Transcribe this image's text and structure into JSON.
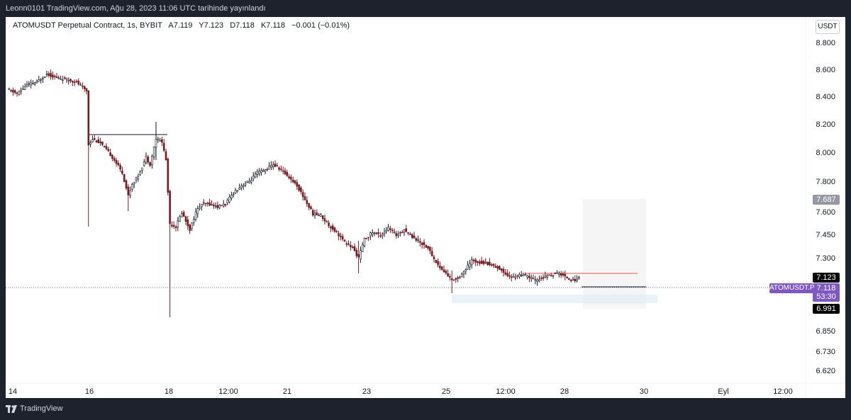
{
  "header": {
    "publish_line": "Leonn0101 TradingView.com, Ağu 28, 2023 11:06 UTC tarihinde yayınlandı"
  },
  "legend": {
    "symbol_text": "ATOMUSDT Perpetual Contract, 1s, BYBIT",
    "ohlc": [
      "A7.119",
      "Y7.123",
      "D7.118",
      "K7.118"
    ],
    "change": "−0.001 (−0.01%)"
  },
  "currency_button": "USDT",
  "price_scale": {
    "ticks": [
      "8.800",
      "8.600",
      "8.400",
      "8.200",
      "8.000",
      "7.800",
      "7.600",
      "7.450",
      "7.300",
      "6.850",
      "6.730",
      "6.620"
    ],
    "labels": {
      "target": "7.687",
      "high": "7.123",
      "last": "7.118",
      "countdown": "53:30",
      "low": "6.991",
      "symbol": "ATOMUSDT.P"
    }
  },
  "time_scale": {
    "ticks": [
      "14",
      "16",
      "18",
      "12:00",
      "21",
      "23",
      "25",
      "12:00",
      "28",
      "30",
      "Eyl",
      "12:00"
    ]
  },
  "footer": {
    "brand": "TradingView"
  },
  "colors": {
    "up": "#131722",
    "down": "#7b1a22",
    "resistance_line": "#131722",
    "red_line": "#ef5350",
    "sym_badge": "#7e57c2"
  },
  "chart_data": {
    "type": "candlestick",
    "title": "ATOMUSDT Perpetual Contract, 1s, BYBIT",
    "last_price": 7.118,
    "drawn_levels": {
      "resistance_left": 8.12,
      "red_line": 7.16,
      "last_line": 7.118,
      "target_box_top": 7.687,
      "target_box_bottom": 6.991
    },
    "close_path": [
      [
        0,
        8.45
      ],
      [
        5,
        8.42
      ],
      [
        10,
        8.48
      ],
      [
        15,
        8.5
      ],
      [
        20,
        8.56
      ],
      [
        25,
        8.53
      ],
      [
        30,
        8.52
      ],
      [
        35,
        8.5
      ],
      [
        40,
        8.44
      ],
      [
        41,
        8.06
      ],
      [
        43,
        8.1
      ],
      [
        47,
        8.07
      ],
      [
        52,
        7.99
      ],
      [
        55,
        7.93
      ],
      [
        58,
        7.86
      ],
      [
        61,
        7.7
      ],
      [
        63,
        7.78
      ],
      [
        66,
        7.84
      ],
      [
        70,
        7.97
      ],
      [
        72,
        7.92
      ],
      [
        75,
        8.1
      ],
      [
        78,
        8.08
      ],
      [
        80,
        7.95
      ],
      [
        82,
        7.5
      ],
      [
        85,
        7.48
      ],
      [
        88,
        7.58
      ],
      [
        92,
        7.46
      ],
      [
        95,
        7.58
      ],
      [
        98,
        7.64
      ],
      [
        102,
        7.64
      ],
      [
        106,
        7.62
      ],
      [
        110,
        7.64
      ],
      [
        114,
        7.72
      ],
      [
        118,
        7.77
      ],
      [
        122,
        7.8
      ],
      [
        126,
        7.86
      ],
      [
        130,
        7.88
      ],
      [
        134,
        7.92
      ],
      [
        138,
        7.88
      ],
      [
        142,
        7.83
      ],
      [
        146,
        7.77
      ],
      [
        150,
        7.67
      ],
      [
        154,
        7.57
      ],
      [
        158,
        7.56
      ],
      [
        162,
        7.49
      ],
      [
        166,
        7.44
      ],
      [
        170,
        7.37
      ],
      [
        174,
        7.33
      ],
      [
        177,
        7.26
      ],
      [
        180,
        7.39
      ],
      [
        184,
        7.44
      ],
      [
        188,
        7.42
      ],
      [
        192,
        7.47
      ],
      [
        196,
        7.42
      ],
      [
        200,
        7.46
      ],
      [
        204,
        7.41
      ],
      [
        208,
        7.37
      ],
      [
        212,
        7.33
      ],
      [
        215,
        7.25
      ],
      [
        218,
        7.19
      ],
      [
        221,
        7.15
      ],
      [
        224,
        7.1
      ],
      [
        227,
        7.12
      ],
      [
        230,
        7.16
      ],
      [
        234,
        7.24
      ],
      [
        238,
        7.23
      ],
      [
        242,
        7.22
      ],
      [
        246,
        7.2
      ],
      [
        250,
        7.16
      ],
      [
        254,
        7.12
      ],
      [
        258,
        7.14
      ],
      [
        262,
        7.13
      ],
      [
        266,
        7.1
      ],
      [
        270,
        7.12
      ],
      [
        274,
        7.14
      ],
      [
        278,
        7.15
      ],
      [
        282,
        7.12
      ],
      [
        285,
        7.1
      ],
      [
        288,
        7.118
      ]
    ]
  }
}
